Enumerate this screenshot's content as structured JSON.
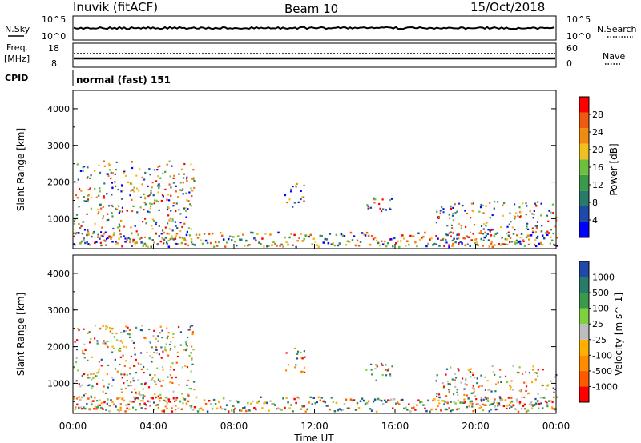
{
  "header": {
    "station": "Inuvik (fitACF)",
    "beam": "Beam 10",
    "date": "15/Oct/2018"
  },
  "summary_panels": {
    "left_label_top": "N.Sky",
    "left_label_mid_1": "Freq.",
    "left_label_mid_2": "[MHz]",
    "left_label_cpid": "CPID",
    "right_label_top": "N.Search",
    "right_label_mid": "Nave",
    "sky_tick_hi": "10^5",
    "sky_tick_lo": "10^0",
    "search_tick_hi": "10^5",
    "search_tick_lo": "10^0",
    "freq_tick_hi": "18",
    "freq_tick_lo": "8",
    "nave_tick_hi": "60",
    "nave_tick_lo": "0",
    "cpid_text": "normal (fast) 151"
  },
  "colors": {
    "power_scale": [
      "#0000ff",
      "#1f4aa8",
      "#2a7a6a",
      "#3a9a4a",
      "#6fbf3f",
      "#f0c020",
      "#f08a10",
      "#f05a10",
      "#ff0000"
    ],
    "velocity_scale": [
      "#ff0000",
      "#ff5a00",
      "#ff8c00",
      "#ffb000",
      "#bdbdbd",
      "#7fcf3f",
      "#3a9a4a",
      "#2a7a6a",
      "#1f4aa8"
    ]
  },
  "chart_data": [
    {
      "type": "heatmap",
      "title": "",
      "ylabel": "Slant Range [km]",
      "ylim": [
        180,
        4500
      ],
      "yticks": [
        "1000",
        "2000",
        "3000",
        "4000"
      ],
      "colorbar_label": "Power [dB]",
      "colorbar_ticks": [
        "4",
        "8",
        "12",
        "16",
        "20",
        "24",
        "28"
      ],
      "regions": [
        {
          "t0": 0.0,
          "t1": 6.0,
          "r0": 300,
          "r1": 2600,
          "level": "mixed"
        },
        {
          "t0": 10.5,
          "t1": 11.5,
          "r0": 1300,
          "r1": 2000,
          "level": "mixed"
        },
        {
          "t0": 14.5,
          "t1": 16.0,
          "r0": 1100,
          "r1": 1600,
          "level": "mixed"
        },
        {
          "t0": 18.0,
          "t1": 24.0,
          "r0": 300,
          "r1": 1500,
          "level": "mixed"
        }
      ]
    },
    {
      "type": "heatmap",
      "title": "",
      "ylabel": "Slant Range [km]",
      "xlabel": "Time UT",
      "ylim": [
        180,
        4500
      ],
      "yticks": [
        "1000",
        "2000",
        "3000",
        "4000"
      ],
      "xticks": [
        "00:00",
        "04:00",
        "08:00",
        "12:00",
        "16:00",
        "20:00",
        "00:00"
      ],
      "colorbar_label": "Velocity [m s^-1]",
      "colorbar_ticks": [
        "1000",
        "500",
        "100",
        "25",
        "-25",
        "-100",
        "-500",
        "-1000"
      ],
      "regions": [
        {
          "t0": 0.0,
          "t1": 6.0,
          "r0": 300,
          "r1": 2600,
          "level": "mixed"
        },
        {
          "t0": 10.5,
          "t1": 11.5,
          "r0": 1300,
          "r1": 2000,
          "level": "mixed"
        },
        {
          "t0": 14.5,
          "t1": 16.0,
          "r0": 1100,
          "r1": 1600,
          "level": "mixed"
        },
        {
          "t0": 18.0,
          "t1": 24.0,
          "r0": 300,
          "r1": 1500,
          "level": "mixed"
        }
      ]
    }
  ]
}
